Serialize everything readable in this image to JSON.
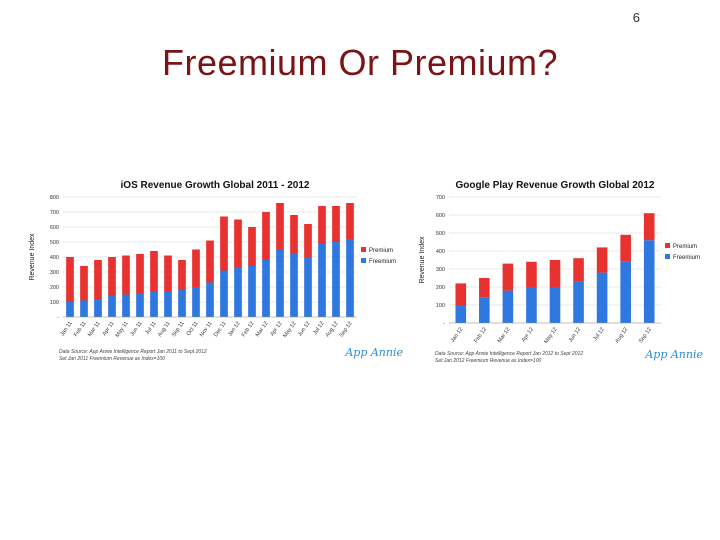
{
  "slide": {
    "number": "6",
    "title": "Freemium Or Premium?"
  },
  "colors": {
    "premium": "#e8322f",
    "freemium": "#2f78e0",
    "title": "#7a1416",
    "logo": "#2a8fd6"
  },
  "logo_text": "App Annie",
  "chart_data": [
    {
      "type": "bar",
      "stacked": true,
      "title": "iOS Revenue Growth Global 2011 - 2012",
      "ylabel": "Revenue Index",
      "xlabel": "",
      "ylim": [
        0,
        800
      ],
      "yticks": [
        0,
        100,
        200,
        300,
        400,
        500,
        600,
        700,
        800
      ],
      "ytick_labels": [
        "-",
        "100",
        "200",
        "300",
        "400",
        "500",
        "600",
        "700",
        "800"
      ],
      "grid": true,
      "legend_position": "right",
      "categories": [
        "Jan 11",
        "Feb 11",
        "Mar 11",
        "Apr 11",
        "May 11",
        "Jun 11",
        "Jul 11",
        "Aug 11",
        "Sep 11",
        "Oct 11",
        "Nov 11",
        "Dec 11",
        "Jan 12",
        "Feb 12",
        "Mar 12",
        "Apr 12",
        "May 12",
        "Jun 12",
        "Jul 12",
        "Aug 12",
        "Sep 12"
      ],
      "series": [
        {
          "name": "Freemium",
          "color": "#2f78e0",
          "values": [
            100,
            110,
            120,
            140,
            150,
            160,
            170,
            170,
            180,
            200,
            230,
            310,
            330,
            340,
            380,
            450,
            420,
            400,
            490,
            500,
            520
          ]
        },
        {
          "name": "Premium",
          "color": "#e8322f",
          "values": [
            300,
            230,
            260,
            260,
            260,
            260,
            270,
            240,
            200,
            250,
            280,
            360,
            320,
            260,
            320,
            310,
            260,
            220,
            250,
            240,
            240
          ]
        }
      ],
      "legend": [
        "Premium",
        "Freemium"
      ],
      "source_lines": [
        "Data Source: App Annie Intelligence Report Jan 2011 to Sept 2012",
        "Set Jan 2011 Freemium Revenue as Index=100"
      ]
    },
    {
      "type": "bar",
      "stacked": true,
      "title": "Google Play Revenue Growth Global 2012",
      "ylabel": "Revenue Index",
      "xlabel": "",
      "ylim": [
        0,
        700
      ],
      "yticks": [
        0,
        100,
        200,
        300,
        400,
        500,
        600,
        700
      ],
      "ytick_labels": [
        "-",
        "100",
        "200",
        "300",
        "400",
        "500",
        "600",
        "700"
      ],
      "grid": true,
      "legend_position": "right",
      "categories": [
        "Jan 12",
        "Feb 12",
        "Mar 12",
        "Apr 12",
        "May 12",
        "Jun 12",
        "Jul 12",
        "Aug 12",
        "Sep 12"
      ],
      "series": [
        {
          "name": "Freemium",
          "color": "#2f78e0",
          "values": [
            100,
            140,
            180,
            200,
            200,
            230,
            280,
            340,
            460
          ]
        },
        {
          "name": "Premium",
          "color": "#e8322f",
          "values": [
            120,
            110,
            150,
            140,
            150,
            130,
            140,
            150,
            150
          ]
        }
      ],
      "legend": [
        "Premium",
        "Freemium"
      ],
      "source_lines": [
        "Data Source: App Annie Intelligence Report Jan 2012 to Sept 2012",
        "Set Jan 2012 Freemium Revenue as Index=100"
      ]
    }
  ]
}
